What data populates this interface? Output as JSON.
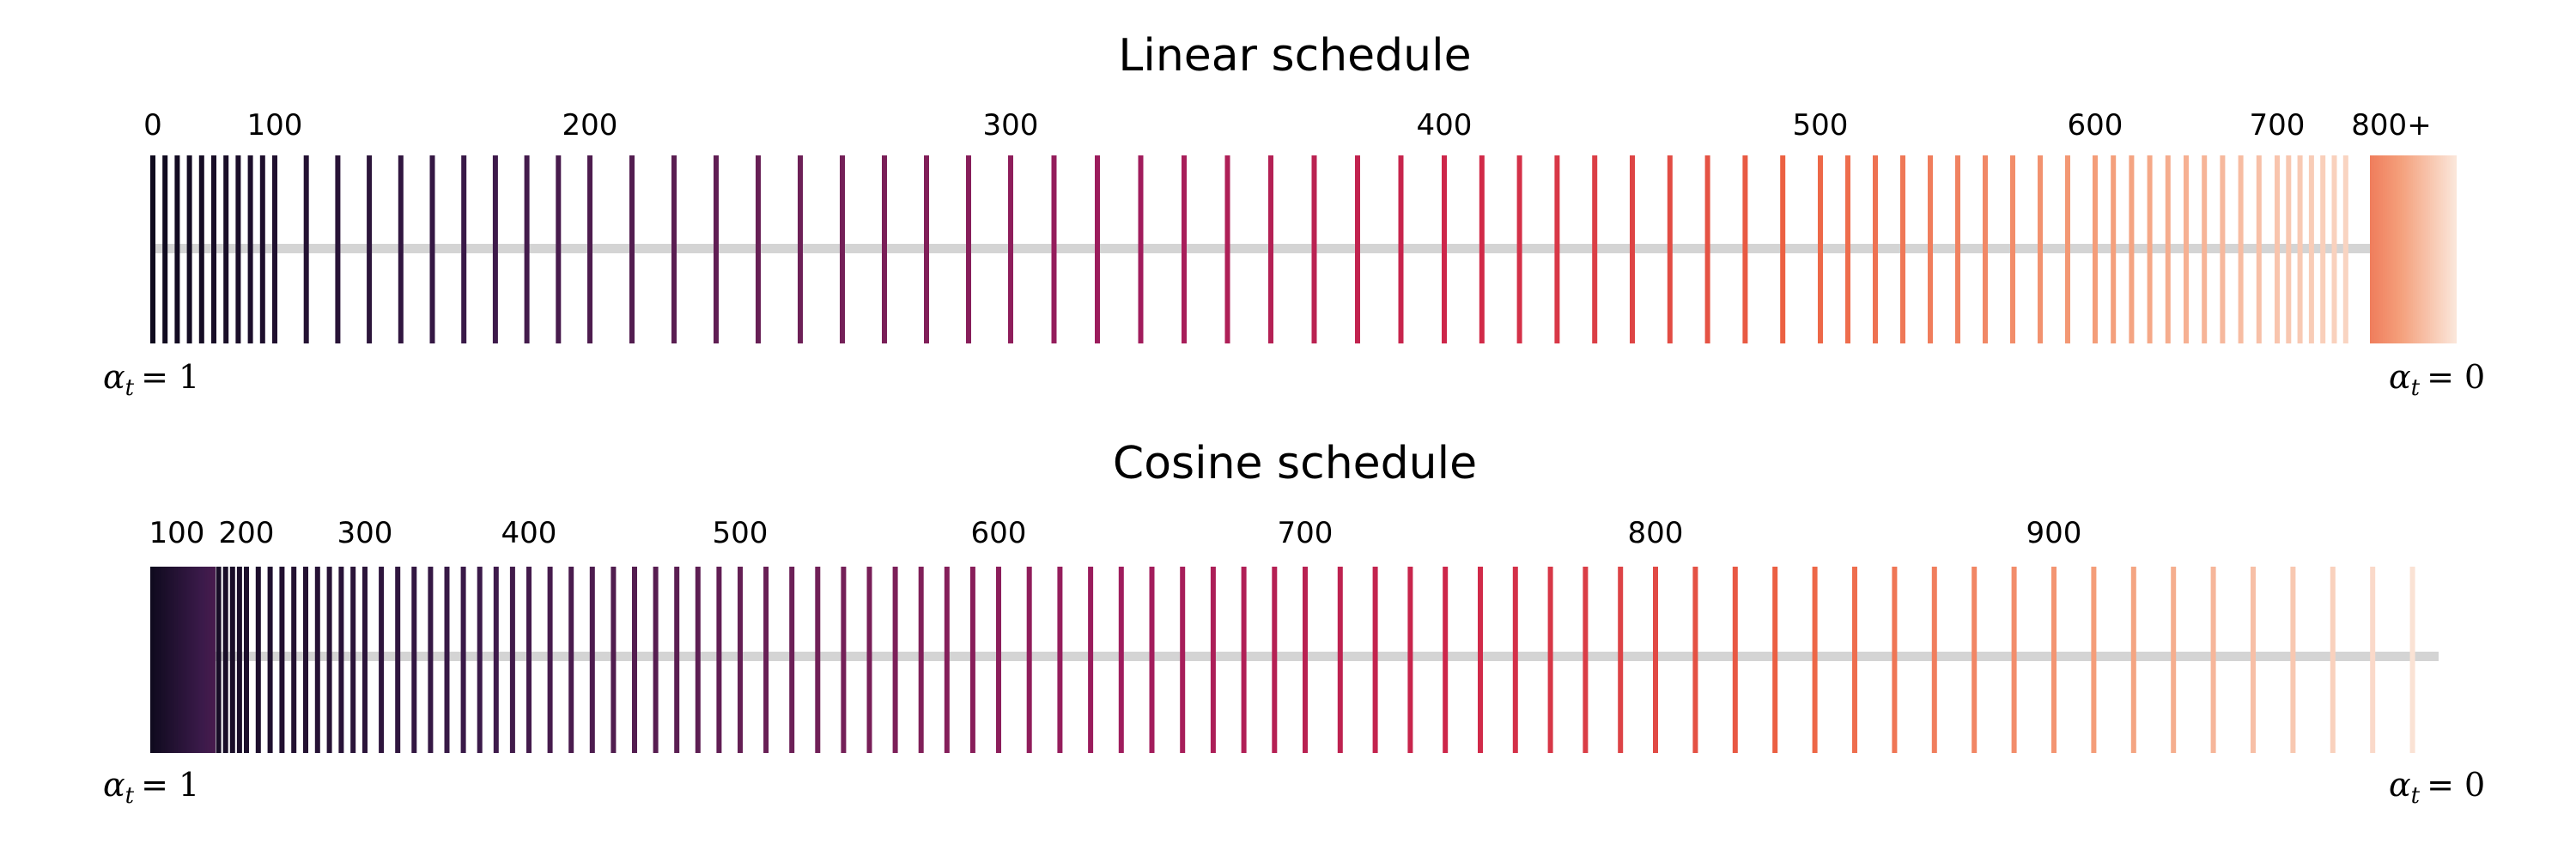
{
  "chart_data": [
    {
      "type": "barcode",
      "title": "Linear schedule",
      "ticks": [
        {
          "t": 0,
          "label": "0"
        },
        {
          "t": 100,
          "label": "100"
        },
        {
          "t": 200,
          "label": "200"
        },
        {
          "t": 300,
          "label": "300"
        },
        {
          "t": 400,
          "label": "400"
        },
        {
          "t": 500,
          "label": "500"
        },
        {
          "t": 600,
          "label": "600"
        },
        {
          "t": 700,
          "label": "700"
        },
        {
          "t": 800,
          "label": "800+"
        }
      ],
      "left_label": {
        "symbol": "α",
        "sub": "t",
        "rhs": "= 1"
      },
      "right_label": {
        "symbol": "α",
        "sub": "t",
        "rhs": "= 0"
      },
      "colors": [
        "#0f0a1e",
        "#3b1a4a",
        "#6e2057",
        "#a01c5d",
        "#cf2649",
        "#ec6142",
        "#f4a07c",
        "#fbe8dc"
      ]
    },
    {
      "type": "barcode",
      "title": "Cosine schedule",
      "ticks": [
        {
          "t": 100,
          "label": "100"
        },
        {
          "t": 200,
          "label": "200"
        },
        {
          "t": 300,
          "label": "300"
        },
        {
          "t": 400,
          "label": "400"
        },
        {
          "t": 500,
          "label": "500"
        },
        {
          "t": 600,
          "label": "600"
        },
        {
          "t": 700,
          "label": "700"
        },
        {
          "t": 800,
          "label": "800"
        },
        {
          "t": 900,
          "label": "900"
        }
      ],
      "left_label": {
        "symbol": "α",
        "sub": "t",
        "rhs": "= 1"
      },
      "right_label": {
        "symbol": "α",
        "sub": "t",
        "rhs": "= 0"
      },
      "colors": [
        "#0f0a1e",
        "#3b1a4a",
        "#6e2057",
        "#a01c5d",
        "#cf2649",
        "#ec6142",
        "#f4a07c",
        "#fbe8dc"
      ]
    }
  ]
}
